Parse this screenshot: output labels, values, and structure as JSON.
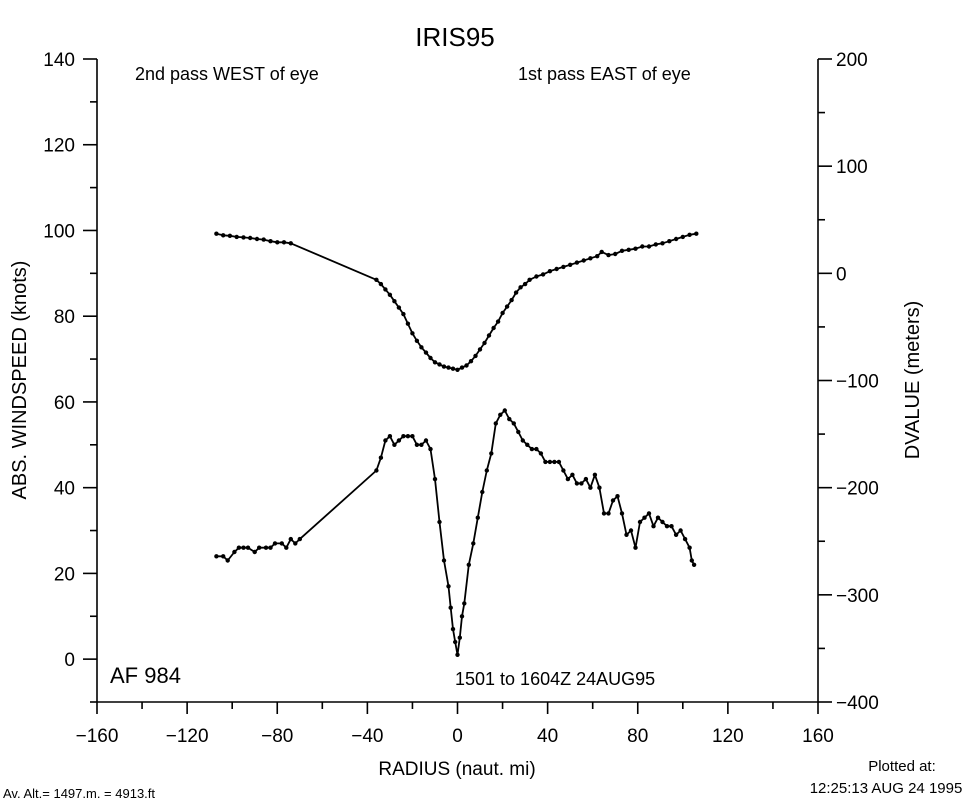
{
  "chart_data": {
    "type": "line",
    "title": "IRIS95",
    "xlabel": "RADIUS (naut. mi)",
    "ylabel": "ABS. WINDSPEED (knots)",
    "y2label": "DVALUE (meters)",
    "xlim": [
      -160,
      160
    ],
    "ylim": [
      -10,
      140
    ],
    "y2lim": [
      -400,
      200
    ],
    "x_ticks": [
      "−160",
      "−120",
      "−80",
      "−40",
      "0",
      "40",
      "80",
      "120",
      "160"
    ],
    "y_ticks": [
      "0",
      "20",
      "40",
      "60",
      "80",
      "100",
      "120",
      "140"
    ],
    "y2_ticks": [
      "−400",
      "−300",
      "−200",
      "−100",
      "0",
      "100",
      "200"
    ],
    "annotations": {
      "top_left": "2nd pass WEST of eye",
      "top_right": "1st pass EAST of eye",
      "aircraft": "AF 984",
      "time_range": "1501 to 1604Z 24AUG95"
    },
    "footer": {
      "altitude": "Av. Alt.= 1497.m. =  4913.ft",
      "plotted_label": "Plotted at:",
      "plotted_time": "12:25:13 AUG 24 1995"
    },
    "series": [
      {
        "axis": "right",
        "points": [
          [
            -107,
            37
          ],
          [
            -104,
            35.5
          ],
          [
            -101,
            35
          ],
          [
            -98,
            34
          ],
          [
            -95,
            33.5
          ],
          [
            -92,
            33
          ],
          [
            -89,
            32
          ],
          [
            -86,
            31.5
          ],
          [
            -83,
            30
          ],
          [
            -80,
            29
          ],
          [
            -77,
            29
          ],
          [
            -74,
            28
          ],
          [
            -36,
            -6
          ],
          [
            -34,
            -10
          ],
          [
            -32,
            -15
          ],
          [
            -30,
            -20
          ],
          [
            -28,
            -26
          ],
          [
            -26,
            -32
          ],
          [
            -24,
            -38
          ],
          [
            -22,
            -47
          ],
          [
            -20,
            -56
          ],
          [
            -18,
            -63
          ],
          [
            -16,
            -69
          ],
          [
            -14,
            -74
          ],
          [
            -12,
            -79
          ],
          [
            -10,
            -83
          ],
          [
            -8,
            -85
          ],
          [
            -6,
            -87
          ],
          [
            -4,
            -88
          ],
          [
            -2,
            -89
          ],
          [
            0,
            -90
          ],
          [
            2,
            -88
          ],
          [
            4,
            -86
          ],
          [
            6,
            -82
          ],
          [
            8,
            -77
          ],
          [
            10,
            -71
          ],
          [
            12,
            -65
          ],
          [
            14,
            -58
          ],
          [
            16,
            -51
          ],
          [
            18,
            -45
          ],
          [
            20,
            -37
          ],
          [
            22,
            -31
          ],
          [
            24,
            -25
          ],
          [
            26,
            -18
          ],
          [
            28,
            -13
          ],
          [
            30,
            -10
          ],
          [
            32,
            -6
          ],
          [
            35,
            -3
          ],
          [
            38,
            -1
          ],
          [
            41,
            2
          ],
          [
            44,
            4
          ],
          [
            47,
            6
          ],
          [
            50,
            8
          ],
          [
            53,
            10
          ],
          [
            56,
            12
          ],
          [
            59,
            14
          ],
          [
            62,
            16
          ],
          [
            64,
            20
          ],
          [
            67,
            17
          ],
          [
            70,
            18
          ],
          [
            73,
            21
          ],
          [
            76,
            22
          ],
          [
            79,
            23
          ],
          [
            82,
            25
          ],
          [
            85,
            25
          ],
          [
            88,
            27
          ],
          [
            91,
            28
          ],
          [
            94,
            30
          ],
          [
            97,
            32
          ],
          [
            100,
            34
          ],
          [
            103,
            36
          ],
          [
            106,
            37
          ]
        ]
      },
      {
        "axis": "left",
        "points": [
          [
            -107,
            24
          ],
          [
            -104,
            24
          ],
          [
            -102,
            23
          ],
          [
            -99,
            25
          ],
          [
            -97,
            26
          ],
          [
            -95,
            26
          ],
          [
            -93,
            26
          ],
          [
            -90,
            25
          ],
          [
            -88,
            26
          ],
          [
            -85,
            26
          ],
          [
            -83,
            26
          ],
          [
            -81,
            27
          ],
          [
            -78,
            27
          ],
          [
            -76,
            26
          ],
          [
            -74,
            28
          ],
          [
            -72,
            27
          ],
          [
            -70,
            28
          ],
          [
            -36,
            44
          ],
          [
            -34,
            47
          ],
          [
            -32,
            51
          ],
          [
            -30,
            52
          ],
          [
            -28,
            50
          ],
          [
            -26,
            51
          ],
          [
            -24,
            52
          ],
          [
            -22,
            52
          ],
          [
            -20,
            52
          ],
          [
            -18,
            50
          ],
          [
            -16,
            50
          ],
          [
            -14,
            51
          ],
          [
            -12,
            49
          ],
          [
            -10,
            42
          ],
          [
            -8,
            32
          ],
          [
            -6,
            23
          ],
          [
            -4,
            17
          ],
          [
            -3,
            12
          ],
          [
            -2,
            7
          ],
          [
            -1,
            4
          ],
          [
            0,
            1
          ],
          [
            1,
            5
          ],
          [
            2,
            10
          ],
          [
            3,
            13
          ],
          [
            5,
            22
          ],
          [
            7,
            27
          ],
          [
            9,
            33
          ],
          [
            11,
            39
          ],
          [
            13,
            44
          ],
          [
            15,
            48
          ],
          [
            17,
            55
          ],
          [
            19,
            57
          ],
          [
            21,
            58
          ],
          [
            23,
            56
          ],
          [
            25,
            55
          ],
          [
            27,
            53
          ],
          [
            29,
            51
          ],
          [
            31,
            50
          ],
          [
            33,
            49
          ],
          [
            35,
            49
          ],
          [
            37,
            48
          ],
          [
            39,
            46
          ],
          [
            41,
            46
          ],
          [
            43,
            46
          ],
          [
            45,
            46
          ],
          [
            47,
            44
          ],
          [
            49,
            42
          ],
          [
            51,
            43
          ],
          [
            53,
            41
          ],
          [
            55,
            41
          ],
          [
            57,
            42
          ],
          [
            59,
            40
          ],
          [
            61,
            43
          ],
          [
            63,
            40
          ],
          [
            65,
            34
          ],
          [
            67,
            34
          ],
          [
            69,
            37
          ],
          [
            71,
            38
          ],
          [
            73,
            34
          ],
          [
            75,
            29
          ],
          [
            77,
            30
          ],
          [
            79,
            26
          ],
          [
            81,
            32
          ],
          [
            83,
            33
          ],
          [
            85,
            34
          ],
          [
            87,
            31
          ],
          [
            89,
            33
          ],
          [
            91,
            32
          ],
          [
            93,
            31
          ],
          [
            95,
            31
          ],
          [
            97,
            29
          ],
          [
            99,
            30
          ],
          [
            101,
            28
          ],
          [
            103,
            26
          ],
          [
            104,
            23
          ],
          [
            105,
            22
          ]
        ]
      }
    ]
  }
}
